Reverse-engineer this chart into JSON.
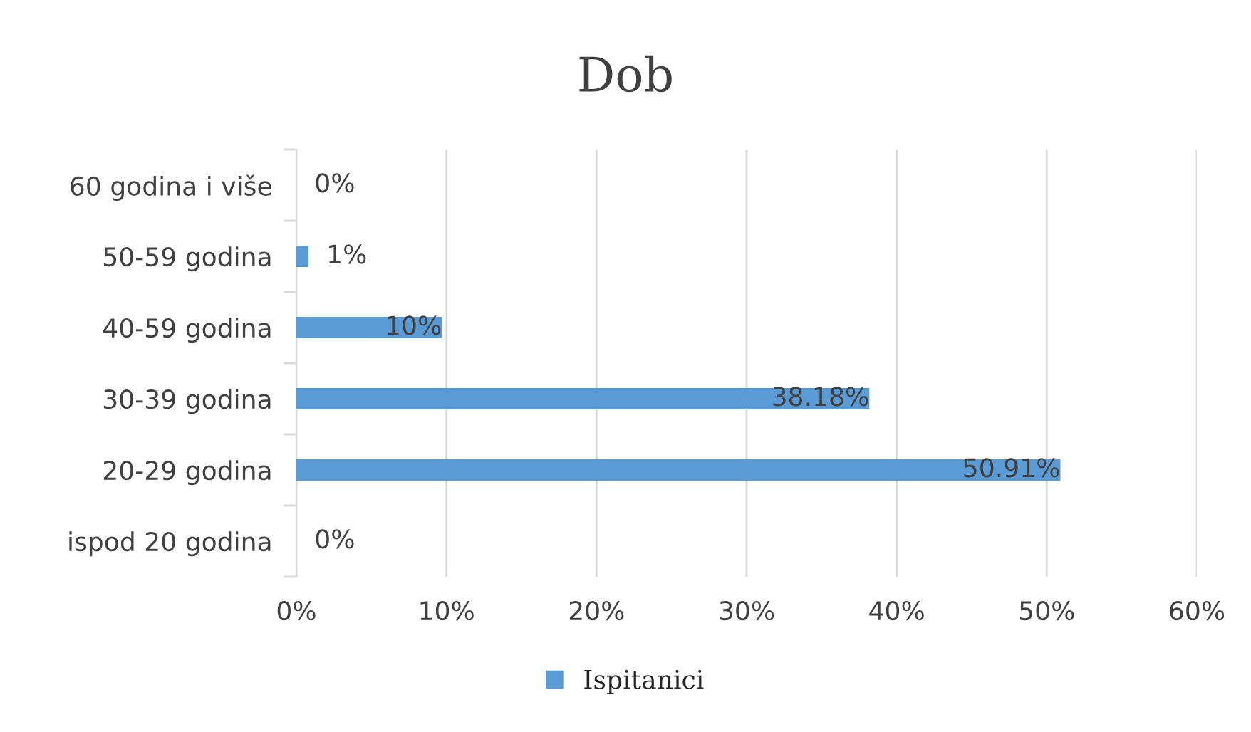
{
  "chart_data": {
    "type": "bar",
    "orientation": "horizontal",
    "title": "Dob",
    "categories": [
      "60 godina i više",
      "50-59 godina",
      "40-59 godina",
      "30-39 godina",
      "20-29 godina",
      "ispod 20 godina"
    ],
    "series": [
      {
        "name": "Ispitanici",
        "color": "#5b9bd5",
        "values": [
          0,
          0.8,
          9.7,
          38.18,
          50.91,
          0
        ],
        "value_labels": [
          "0%",
          "1%",
          "10%",
          "38.18%",
          "50.91%",
          "0%"
        ]
      }
    ],
    "xlim": [
      0,
      60
    ],
    "xticks": [
      {
        "value": 0,
        "label": "0%"
      },
      {
        "value": 10,
        "label": "10%"
      },
      {
        "value": 20,
        "label": "20%"
      },
      {
        "value": 30,
        "label": "30%"
      },
      {
        "value": 40,
        "label": "40%"
      },
      {
        "value": 50,
        "label": "50%"
      },
      {
        "value": 60,
        "label": "60%"
      }
    ],
    "grid": "x",
    "legend": "bottom"
  }
}
